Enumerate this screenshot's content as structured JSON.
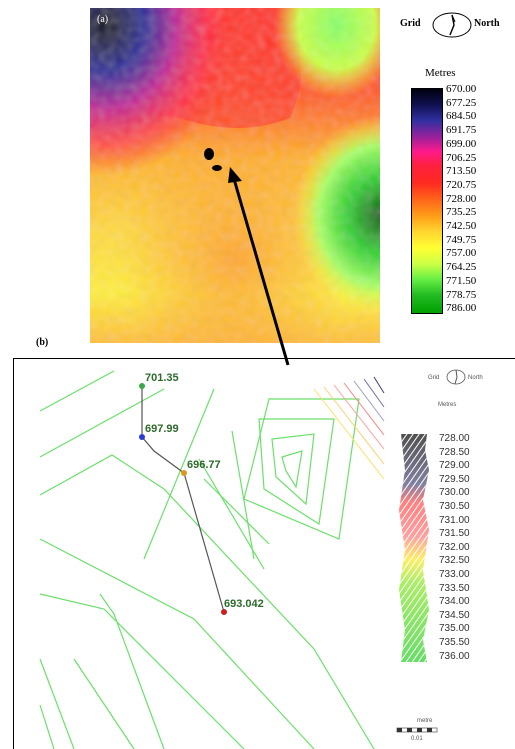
{
  "panel_a": {
    "label": "(a)",
    "north_grid": "Grid",
    "north_north": "North",
    "legend_title": "Metres",
    "legend_values": [
      "670.00",
      "677.25",
      "684.50",
      "691.75",
      "699.00",
      "706.25",
      "713.50",
      "720.75",
      "728.00",
      "735.25",
      "742.50",
      "749.75",
      "757.00",
      "764.25",
      "771.50",
      "778.75",
      "786.00"
    ],
    "colors": {
      "low": "#0a0a30",
      "blue": "#2a2a9a",
      "magenta": "#ff1a8c",
      "red": "#ff2020",
      "orange": "#ff8c1a",
      "yellow": "#ffff33",
      "green_light": "#80ff66",
      "green_dark": "#006600"
    }
  },
  "panel_b": {
    "label": "(b)",
    "north_grid": "Grid",
    "north_north": "North",
    "legend_title": "Metres",
    "legend_values": [
      "728.00",
      "728.50",
      "729.00",
      "729.50",
      "730.00",
      "730.50",
      "731.00",
      "731.50",
      "732.00",
      "732.50",
      "733.00",
      "733.50",
      "734.00",
      "734.50",
      "735.00",
      "735.50",
      "736.00"
    ],
    "points": [
      {
        "label": "701.35",
        "color": "#3aa84a"
      },
      {
        "label": "697.99",
        "color": "#2a3ad8"
      },
      {
        "label": "696.77",
        "color": "#d89a1a"
      },
      {
        "label": "693.042",
        "color": "#cc2020"
      }
    ],
    "scale_title": "metre",
    "scale_value": "0.01",
    "colors": {
      "contour": "#6be06b",
      "track": "#555555",
      "label": "#2c6b2c"
    }
  }
}
